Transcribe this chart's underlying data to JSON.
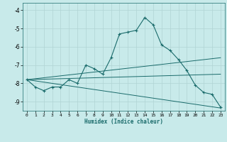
{
  "xlabel": "Humidex (Indice chaleur)",
  "ylabel": "",
  "bg_color": "#c8eaea",
  "grid_color": "#b0d4d4",
  "line_color": "#1a6b6b",
  "xlim": [
    -0.5,
    23.5
  ],
  "ylim": [
    -9.5,
    -3.6
  ],
  "xticks": [
    0,
    1,
    2,
    3,
    4,
    5,
    6,
    7,
    8,
    9,
    10,
    11,
    12,
    13,
    14,
    15,
    16,
    17,
    18,
    19,
    20,
    21,
    22,
    23
  ],
  "yticks": [
    -9,
    -8,
    -7,
    -6,
    -5,
    -4
  ],
  "main_x": [
    0,
    1,
    2,
    3,
    4,
    5,
    6,
    7,
    8,
    9,
    10,
    11,
    12,
    13,
    14,
    15,
    16,
    17,
    18,
    19,
    20,
    21,
    22,
    23
  ],
  "main_y": [
    -7.8,
    -8.2,
    -8.4,
    -8.2,
    -8.2,
    -7.8,
    -8.0,
    -7.0,
    -7.2,
    -7.5,
    -6.6,
    -5.3,
    -5.2,
    -5.1,
    -4.4,
    -4.8,
    -5.9,
    -6.2,
    -6.7,
    -7.3,
    -8.1,
    -8.5,
    -8.6,
    -9.3
  ],
  "trend1_x": [
    0,
    23
  ],
  "trend1_y": [
    -7.8,
    -6.6
  ],
  "trend2_x": [
    0,
    23
  ],
  "trend2_y": [
    -7.8,
    -7.5
  ],
  "trend3_x": [
    0,
    23
  ],
  "trend3_y": [
    -7.8,
    -9.35
  ]
}
